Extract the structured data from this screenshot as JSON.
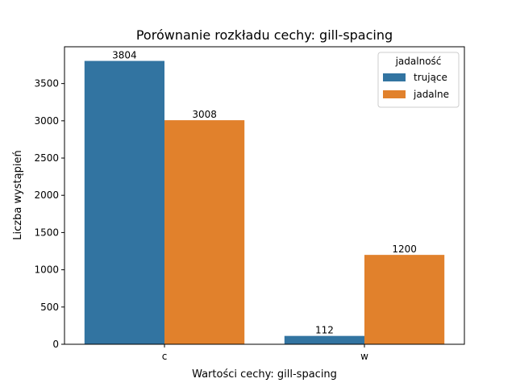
{
  "chart_data": {
    "type": "bar",
    "title": "Porównanie rozkładu cechy: gill-spacing",
    "xlabel": "Wartości cechy: gill-spacing",
    "ylabel": "Liczba wystąpień",
    "categories": [
      "c",
      "w"
    ],
    "series": [
      {
        "name": "trujące",
        "values": [
          3804,
          112
        ],
        "color": "#3274a1"
      },
      {
        "name": "jadalne",
        "values": [
          3008,
          1200
        ],
        "color": "#e1812c"
      }
    ],
    "ylim": [
      0,
      3994
    ],
    "yticks": [
      0,
      500,
      1000,
      1500,
      2000,
      2500,
      3000,
      3500
    ],
    "legend_title": "jadalność",
    "legend_position": "top-right",
    "grid": false
  }
}
